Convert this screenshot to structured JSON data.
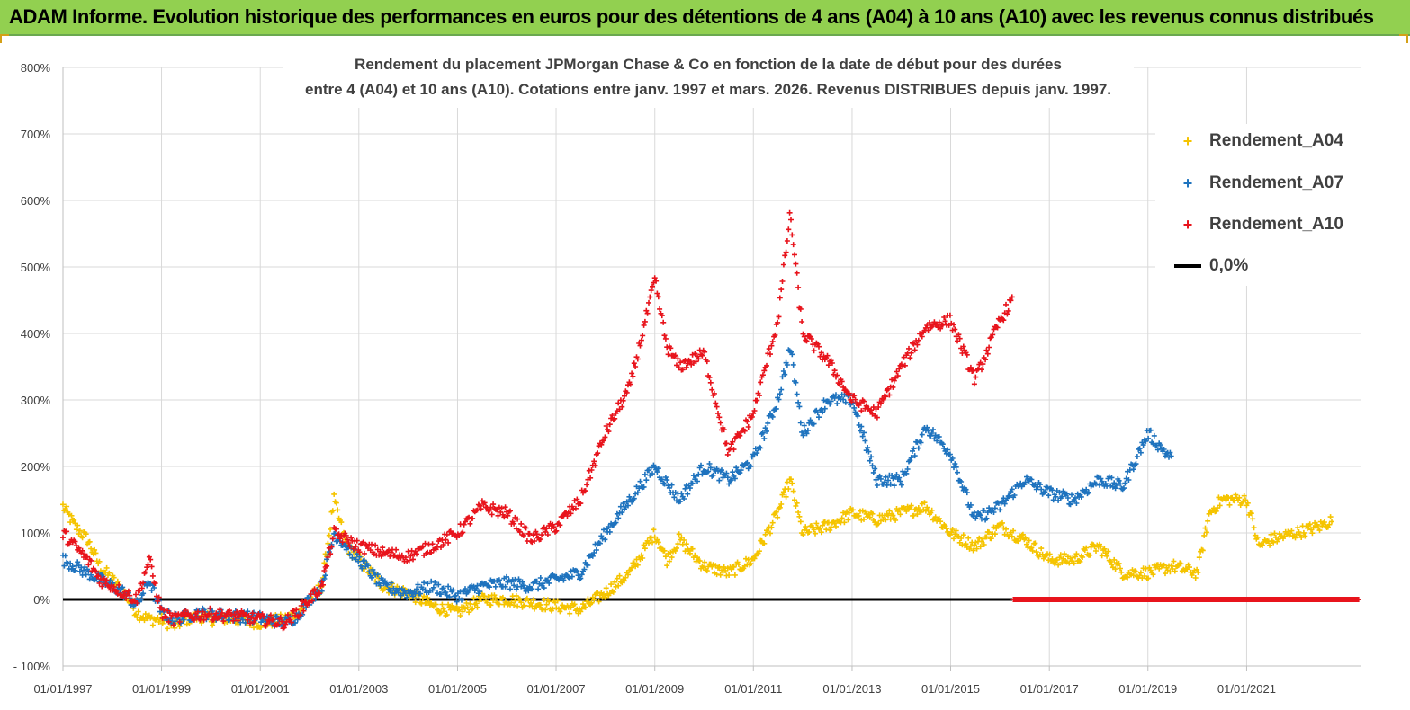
{
  "header": {
    "title": "ADAM Informe. Evolution historique des performances en euros pour des détentions de 4 ans (A04) à 10 ans (A10) avec les revenus connus distribués"
  },
  "chart_data": {
    "type": "scatter",
    "title_line1": "Rendement du placement JPMorgan Chase & Co en fonction de la date de début pour des durées",
    "title_line2": "entre 4 (A04) et 10 ans (A10).  Cotations entre janv. 1997 et mars. 2026. Revenus DISTRIBUES depuis janv. 1997.",
    "xlim": [
      "1997-01-01",
      "2023-05-01"
    ],
    "ylim": [
      -100,
      800
    ],
    "y_ticks": [
      -100,
      0,
      100,
      200,
      300,
      400,
      500,
      600,
      700,
      800
    ],
    "y_tick_labels": [
      "- 100%",
      "0%",
      "100%",
      "200%",
      "300%",
      "400%",
      "500%",
      "600%",
      "700%",
      "800%"
    ],
    "x_ticks": [
      "1997-01-01",
      "1999-01-01",
      "2001-01-01",
      "2003-01-01",
      "2005-01-01",
      "2007-01-01",
      "2009-01-01",
      "2011-01-01",
      "2013-01-01",
      "2015-01-01",
      "2017-01-01",
      "2019-01-01",
      "2021-01-01"
    ],
    "x_tick_labels": [
      "01/01/1997",
      "01/01/1999",
      "01/01/2001",
      "01/01/2003",
      "01/01/2005",
      "01/01/2007",
      "01/01/2009",
      "01/01/2011",
      "01/01/2013",
      "01/01/2015",
      "01/01/2017",
      "01/01/2019",
      "01/01/2021"
    ],
    "grid": true,
    "legend_position": "top-right",
    "series": [
      {
        "name": "Rendement_A04",
        "color": "#f5c400",
        "marker": "+",
        "end": "2022-10-01",
        "points": [
          [
            "1997-01-01",
            140
          ],
          [
            "1997-04-01",
            110
          ],
          [
            "1997-07-01",
            90
          ],
          [
            "1997-10-01",
            50
          ],
          [
            "1998-01-01",
            30
          ],
          [
            "1998-04-01",
            10
          ],
          [
            "1998-07-01",
            -20
          ],
          [
            "1998-10-01",
            -30
          ],
          [
            "1999-01-01",
            -30
          ],
          [
            "1999-04-01",
            -40
          ],
          [
            "1999-07-01",
            -30
          ],
          [
            "1999-10-01",
            -25
          ],
          [
            "2000-01-01",
            -30
          ],
          [
            "2000-04-01",
            -28
          ],
          [
            "2000-07-01",
            -30
          ],
          [
            "2000-10-01",
            -32
          ],
          [
            "2001-01-01",
            -35
          ],
          [
            "2001-07-01",
            -30
          ],
          [
            "2001-10-01",
            -20
          ],
          [
            "2002-01-01",
            0
          ],
          [
            "2002-04-01",
            20
          ],
          [
            "2002-07-01",
            150
          ],
          [
            "2002-10-01",
            80
          ],
          [
            "2003-01-01",
            60
          ],
          [
            "2003-04-01",
            40
          ],
          [
            "2003-07-01",
            20
          ],
          [
            "2004-01-01",
            10
          ],
          [
            "2004-07-01",
            -10
          ],
          [
            "2005-01-01",
            -20
          ],
          [
            "2005-07-01",
            0
          ],
          [
            "2006-01-01",
            0
          ],
          [
            "2006-07-01",
            -5
          ],
          [
            "2007-01-01",
            -10
          ],
          [
            "2007-07-01",
            -15
          ],
          [
            "2008-01-01",
            10
          ],
          [
            "2008-07-01",
            40
          ],
          [
            "2009-01-01",
            100
          ],
          [
            "2009-04-01",
            60
          ],
          [
            "2009-07-01",
            90
          ],
          [
            "2010-01-01",
            50
          ],
          [
            "2010-07-01",
            40
          ],
          [
            "2011-01-01",
            60
          ],
          [
            "2011-07-01",
            130
          ],
          [
            "2011-10-01",
            180
          ],
          [
            "2012-01-01",
            100
          ],
          [
            "2012-07-01",
            110
          ],
          [
            "2013-01-01",
            130
          ],
          [
            "2013-07-01",
            120
          ],
          [
            "2014-01-01",
            130
          ],
          [
            "2014-07-01",
            140
          ],
          [
            "2015-01-01",
            100
          ],
          [
            "2015-07-01",
            80
          ],
          [
            "2016-01-01",
            110
          ],
          [
            "2016-07-01",
            90
          ],
          [
            "2017-01-01",
            60
          ],
          [
            "2017-07-01",
            60
          ],
          [
            "2018-01-01",
            80
          ],
          [
            "2018-07-01",
            40
          ],
          [
            "2019-01-01",
            40
          ],
          [
            "2019-07-01",
            50
          ],
          [
            "2020-01-01",
            40
          ],
          [
            "2020-04-01",
            130
          ],
          [
            "2020-07-01",
            150
          ],
          [
            "2021-01-01",
            150
          ],
          [
            "2021-04-01",
            80
          ],
          [
            "2021-07-01",
            90
          ],
          [
            "2022-01-01",
            100
          ],
          [
            "2022-07-01",
            110
          ],
          [
            "2022-10-01",
            120
          ]
        ]
      },
      {
        "name": "Rendement_A07",
        "color": "#1e73be",
        "marker": "+",
        "end": "2019-07-01",
        "points": [
          [
            "1997-01-01",
            60
          ],
          [
            "1997-04-01",
            50
          ],
          [
            "1997-07-01",
            40
          ],
          [
            "1997-10-01",
            30
          ],
          [
            "1998-01-01",
            20
          ],
          [
            "1998-04-01",
            10
          ],
          [
            "1998-07-01",
            -10
          ],
          [
            "1998-10-01",
            30
          ],
          [
            "1999-01-01",
            -20
          ],
          [
            "1999-04-01",
            -30
          ],
          [
            "1999-07-01",
            -25
          ],
          [
            "1999-10-01",
            -20
          ],
          [
            "2000-01-01",
            -22
          ],
          [
            "2000-07-01",
            -25
          ],
          [
            "2001-01-01",
            -28
          ],
          [
            "2001-07-01",
            -35
          ],
          [
            "2001-10-01",
            -25
          ],
          [
            "2002-01-01",
            0
          ],
          [
            "2002-04-01",
            20
          ],
          [
            "2002-07-01",
            100
          ],
          [
            "2002-10-01",
            80
          ],
          [
            "2003-01-01",
            60
          ],
          [
            "2003-04-01",
            40
          ],
          [
            "2003-07-01",
            20
          ],
          [
            "2004-01-01",
            10
          ],
          [
            "2004-07-01",
            20
          ],
          [
            "2005-01-01",
            5
          ],
          [
            "2005-07-01",
            20
          ],
          [
            "2006-01-01",
            25
          ],
          [
            "2006-07-01",
            20
          ],
          [
            "2007-01-01",
            30
          ],
          [
            "2007-07-01",
            40
          ],
          [
            "2008-01-01",
            100
          ],
          [
            "2008-07-01",
            150
          ],
          [
            "2009-01-01",
            200
          ],
          [
            "2009-07-01",
            150
          ],
          [
            "2010-01-01",
            200
          ],
          [
            "2010-07-01",
            180
          ],
          [
            "2011-01-01",
            210
          ],
          [
            "2011-07-01",
            300
          ],
          [
            "2011-10-01",
            380
          ],
          [
            "2012-01-01",
            250
          ],
          [
            "2012-07-01",
            300
          ],
          [
            "2013-01-01",
            300
          ],
          [
            "2013-07-01",
            180
          ],
          [
            "2014-01-01",
            180
          ],
          [
            "2014-07-01",
            260
          ],
          [
            "2015-01-01",
            220
          ],
          [
            "2015-07-01",
            120
          ],
          [
            "2016-01-01",
            140
          ],
          [
            "2016-07-01",
            180
          ],
          [
            "2017-01-01",
            160
          ],
          [
            "2017-07-01",
            150
          ],
          [
            "2018-01-01",
            180
          ],
          [
            "2018-07-01",
            170
          ],
          [
            "2019-01-01",
            250
          ],
          [
            "2019-07-01",
            210
          ]
        ]
      },
      {
        "name": "Rendement_A10",
        "color": "#e8141c",
        "marker": "+",
        "end": "2016-04-01",
        "points": [
          [
            "1997-01-01",
            100
          ],
          [
            "1997-04-01",
            80
          ],
          [
            "1997-07-01",
            60
          ],
          [
            "1997-10-01",
            30
          ],
          [
            "1998-01-01",
            20
          ],
          [
            "1998-04-01",
            10
          ],
          [
            "1998-07-01",
            0
          ],
          [
            "1998-10-01",
            60
          ],
          [
            "1999-01-01",
            -20
          ],
          [
            "1999-04-01",
            -30
          ],
          [
            "1999-07-01",
            -25
          ],
          [
            "2000-01-01",
            -22
          ],
          [
            "2000-07-01",
            -25
          ],
          [
            "2001-01-01",
            -30
          ],
          [
            "2001-07-01",
            -35
          ],
          [
            "2001-10-01",
            -20
          ],
          [
            "2002-01-01",
            0
          ],
          [
            "2002-04-01",
            20
          ],
          [
            "2002-07-01",
            100
          ],
          [
            "2002-10-01",
            90
          ],
          [
            "2003-01-01",
            80
          ],
          [
            "2003-07-01",
            70
          ],
          [
            "2004-01-01",
            65
          ],
          [
            "2004-07-01",
            80
          ],
          [
            "2005-01-01",
            100
          ],
          [
            "2005-07-01",
            140
          ],
          [
            "2006-01-01",
            130
          ],
          [
            "2006-07-01",
            90
          ],
          [
            "2007-01-01",
            110
          ],
          [
            "2007-07-01",
            150
          ],
          [
            "2008-01-01",
            250
          ],
          [
            "2008-07-01",
            320
          ],
          [
            "2009-01-01",
            480
          ],
          [
            "2009-04-01",
            380
          ],
          [
            "2009-07-01",
            350
          ],
          [
            "2010-01-01",
            370
          ],
          [
            "2010-07-01",
            220
          ],
          [
            "2011-01-01",
            280
          ],
          [
            "2011-07-01",
            420
          ],
          [
            "2011-10-01",
            580
          ],
          [
            "2012-01-01",
            400
          ],
          [
            "2012-07-01",
            360
          ],
          [
            "2013-01-01",
            300
          ],
          [
            "2013-07-01",
            280
          ],
          [
            "2014-01-01",
            350
          ],
          [
            "2014-07-01",
            410
          ],
          [
            "2015-01-01",
            420
          ],
          [
            "2015-07-01",
            330
          ],
          [
            "2016-01-01",
            420
          ],
          [
            "2016-04-01",
            450
          ]
        ]
      },
      {
        "name": "0,0%",
        "color": "#000000",
        "marker": "line",
        "value": 0
      }
    ]
  }
}
